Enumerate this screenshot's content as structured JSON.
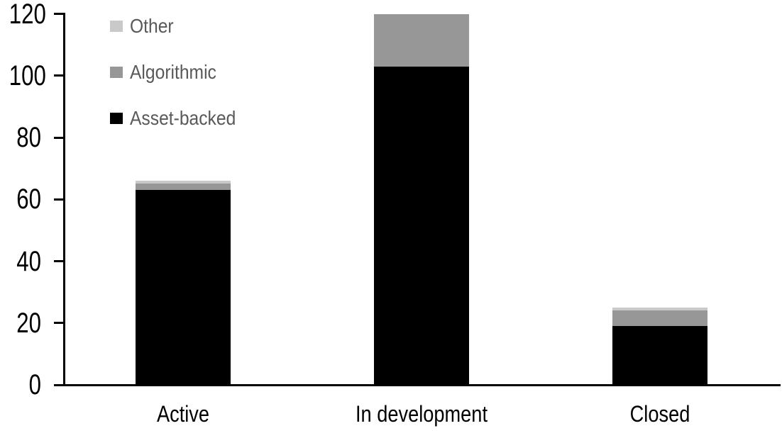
{
  "chart_data": {
    "type": "bar",
    "stacked": true,
    "title": "",
    "xlabel": "",
    "ylabel": "",
    "categories": [
      "Active",
      "In development",
      "Closed"
    ],
    "series": [
      {
        "name": "Asset-backed",
        "color": "#000000",
        "values": [
          63,
          103,
          19
        ]
      },
      {
        "name": "Algorithmic",
        "color": "#979797",
        "values": [
          2,
          17,
          5
        ]
      },
      {
        "name": "Other",
        "color": "#c9c9c9",
        "values": [
          1,
          0,
          1
        ]
      }
    ],
    "stack_totals": [
      66,
      120,
      25
    ],
    "ylim": [
      0,
      120
    ],
    "y_ticks": [
      0,
      20,
      40,
      60,
      80,
      100,
      120
    ],
    "grid": false,
    "legend_position": "top-left",
    "legend_order": [
      "Other",
      "Algorithmic",
      "Asset-backed"
    ],
    "legend_text_color": "#595959",
    "axis_color": "#000000",
    "background_color": "#ffffff"
  }
}
